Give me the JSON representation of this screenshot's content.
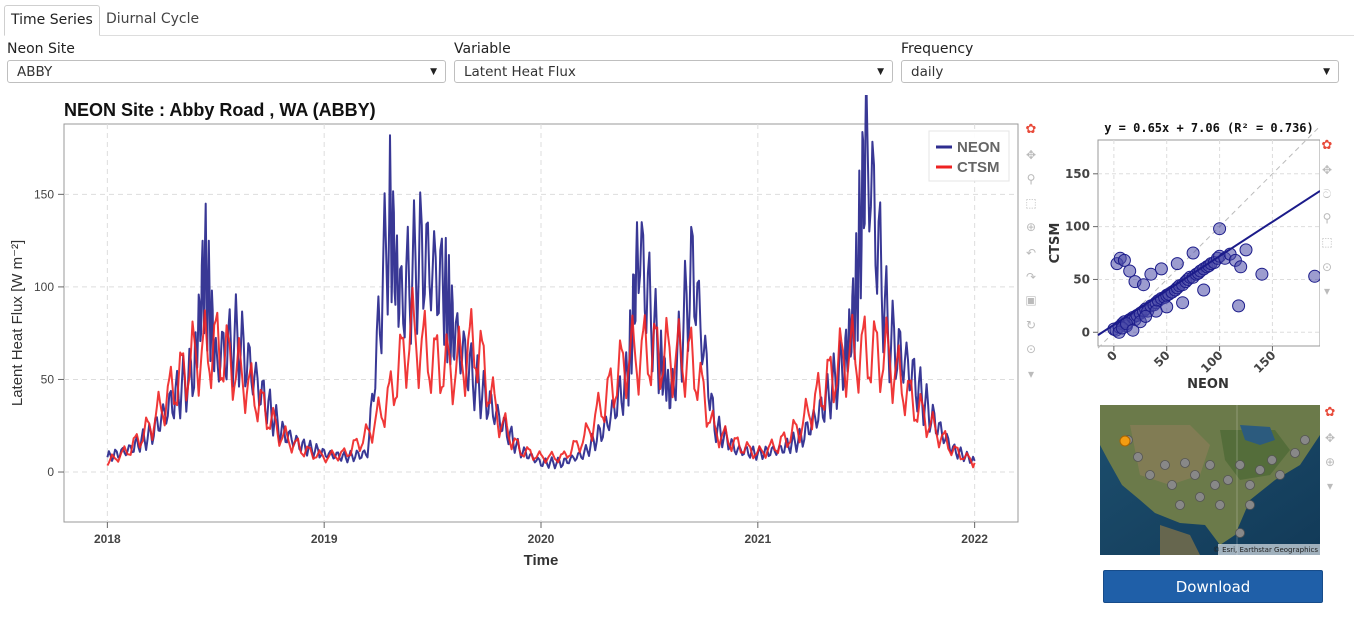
{
  "tabs": [
    {
      "label": "Time Series",
      "active": true
    },
    {
      "label": "Diurnal Cycle",
      "active": false
    }
  ],
  "controls": {
    "site": {
      "label": "Neon Site",
      "value": "ABBY"
    },
    "variable": {
      "label": "Variable",
      "value": "Latent Heat Flux"
    },
    "frequency": {
      "label": "Frequency",
      "value": "daily"
    }
  },
  "download_label": "Download",
  "map": {
    "attribution": "© Esri, Earthstar Geographics"
  },
  "colors": {
    "neon": "#2e2d8f",
    "ctsm": "#ee2222",
    "scatter": "#1b1b8a",
    "accent": "#1f5fa8"
  },
  "chart_data": [
    {
      "type": "line",
      "title": "NEON Site : Abby Road , WA (ABBY)",
      "xlabel": "Time",
      "ylabel": "Latent Heat Flux [W m⁻²]",
      "xlim": [
        2017.8,
        2022.2
      ],
      "ylim": [
        -27,
        188
      ],
      "x_ticks": [
        2018,
        2019,
        2020,
        2021,
        2022
      ],
      "x_tick_labels": [
        "2018",
        "2019",
        "2020",
        "2021",
        "2022"
      ],
      "y_ticks": [
        0,
        50,
        100,
        150
      ],
      "legend": {
        "placement": "top-right",
        "entries": [
          "NEON",
          "CTSM"
        ]
      },
      "grid": true,
      "series": [
        {
          "name": "NEON",
          "x": [
            2018.0,
            2018.1,
            2018.2,
            2018.3,
            2018.4,
            2018.45,
            2018.5,
            2018.6,
            2018.7,
            2018.8,
            2018.9,
            2019.0,
            2019.1,
            2019.2,
            2019.3,
            2019.35,
            2019.45,
            2019.55,
            2019.6,
            2019.7,
            2019.8,
            2019.9,
            2020.0,
            2020.1,
            2020.2,
            2020.3,
            2020.4,
            2020.45,
            2020.55,
            2020.6,
            2020.7,
            2020.8,
            2020.9,
            2021.0,
            2021.1,
            2021.2,
            2021.3,
            2021.4,
            2021.45,
            2021.5,
            2021.6,
            2021.7,
            2021.8,
            2021.9,
            2022.0
          ],
          "y": [
            8,
            12,
            20,
            38,
            55,
            112,
            60,
            72,
            45,
            22,
            14,
            10,
            8,
            10,
            140,
            92,
            118,
            100,
            75,
            48,
            30,
            12,
            5,
            5,
            10,
            25,
            50,
            122,
            60,
            40,
            110,
            25,
            12,
            10,
            12,
            18,
            35,
            60,
            90,
            179,
            75,
            55,
            30,
            12,
            6
          ]
        },
        {
          "name": "CTSM",
          "x": [
            2018.0,
            2018.1,
            2018.2,
            2018.3,
            2018.4,
            2018.5,
            2018.6,
            2018.7,
            2018.8,
            2018.9,
            2019.0,
            2019.1,
            2019.2,
            2019.3,
            2019.4,
            2019.5,
            2019.6,
            2019.7,
            2019.8,
            2019.9,
            2020.0,
            2020.1,
            2020.2,
            2020.3,
            2020.4,
            2020.5,
            2020.6,
            2020.7,
            2020.8,
            2020.9,
            2021.0,
            2021.1,
            2021.2,
            2021.3,
            2021.4,
            2021.5,
            2021.6,
            2021.7,
            2021.8,
            2021.9,
            2022.0
          ],
          "y": [
            5,
            12,
            25,
            45,
            62,
            68,
            55,
            38,
            20,
            12,
            8,
            10,
            20,
            40,
            75,
            60,
            55,
            70,
            30,
            12,
            8,
            8,
            18,
            40,
            62,
            65,
            62,
            60,
            22,
            15,
            10,
            15,
            25,
            45,
            62,
            65,
            62,
            40,
            25,
            12,
            5
          ]
        }
      ]
    },
    {
      "type": "scatter",
      "title": "y = 0.65x + 7.06 (R² = 0.736)",
      "xlabel": "NEON",
      "ylabel": "CTSM",
      "xlim": [
        -15,
        195
      ],
      "ylim": [
        -13,
        182
      ],
      "x_ticks": [
        0,
        50,
        100,
        150
      ],
      "y_ticks": [
        0,
        50,
        100,
        150
      ],
      "grid": true,
      "regression": {
        "slope": 0.65,
        "intercept": 7.06,
        "r2": 0.736
      },
      "one_to_one_line": true,
      "series": [
        {
          "x": [
            0,
            2,
            5,
            8,
            10,
            12,
            15,
            18,
            20,
            22,
            25,
            28,
            30,
            32,
            35,
            38,
            40,
            42,
            45,
            48,
            50,
            52,
            55,
            58,
            60,
            62,
            65,
            68,
            70,
            72,
            75,
            78,
            80,
            82,
            85,
            88,
            90,
            92,
            95,
            98,
            100,
            105,
            110,
            115,
            120,
            125,
            3,
            6,
            10,
            15,
            20,
            28,
            35,
            45,
            60,
            75,
            118,
            140,
            190,
            5,
            8,
            12,
            18,
            25,
            30,
            40,
            50,
            65,
            85,
            100
          ],
          "y": [
            3,
            2,
            5,
            8,
            10,
            6,
            12,
            14,
            12,
            16,
            18,
            20,
            22,
            20,
            25,
            26,
            28,
            30,
            32,
            33,
            35,
            36,
            38,
            40,
            42,
            44,
            45,
            48,
            50,
            52,
            52,
            55,
            56,
            58,
            60,
            62,
            63,
            65,
            66,
            70,
            72,
            70,
            74,
            68,
            62,
            78,
            65,
            70,
            68,
            58,
            48,
            45,
            55,
            60,
            65,
            75,
            25,
            55,
            53,
            0,
            4,
            8,
            2,
            10,
            15,
            20,
            24,
            28,
            40,
            98
          ]
        }
      ]
    }
  ]
}
